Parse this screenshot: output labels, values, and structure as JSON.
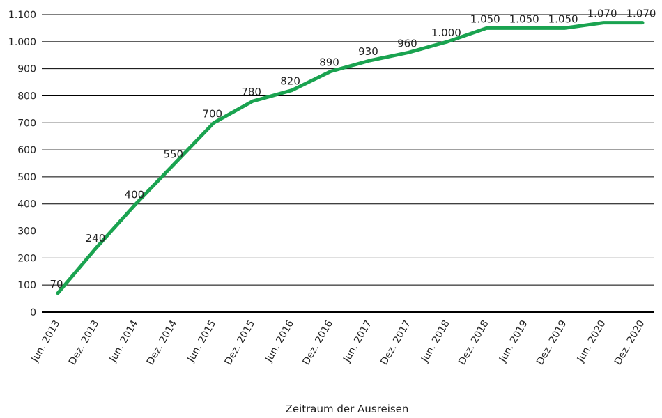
{
  "chart_data": {
    "type": "line",
    "title": "",
    "xlabel": "Zeitraum der Ausreisen",
    "ylabel": "",
    "ylim": [
      0,
      1100
    ],
    "yticks": [
      0,
      100,
      200,
      300,
      400,
      500,
      600,
      700,
      800,
      900,
      1000,
      1100
    ],
    "ytick_labels": [
      "0",
      "100",
      "200",
      "300",
      "400",
      "500",
      "600",
      "700",
      "800",
      "900",
      "1.000",
      "1.100"
    ],
    "grid": true,
    "legend": "none",
    "categories": [
      "Jun. 2013",
      "Dez. 2013",
      "Jun. 2014",
      "Dez. 2014",
      "Jun. 2015",
      "Dez. 2015",
      "Jun. 2016",
      "Dez. 2016",
      "Jun. 2017",
      "Dez. 2017",
      "Jun. 2018",
      "Dez. 2018",
      "Jun. 2019",
      "Dez. 2019",
      "Jun. 2020",
      "Dez. 2020"
    ],
    "series": [
      {
        "values": [
          70,
          240,
          400,
          550,
          700,
          780,
          820,
          890,
          930,
          960,
          1000,
          1050,
          1050,
          1050,
          1070,
          1070
        ],
        "labels": [
          "70",
          "240",
          "400",
          "550",
          "700",
          "780",
          "820",
          "890",
          "930",
          "960",
          "1.000",
          "1.050",
          "1.050",
          "1.050",
          "1.070",
          "1.070"
        ],
        "color": "#1aa350"
      }
    ]
  }
}
